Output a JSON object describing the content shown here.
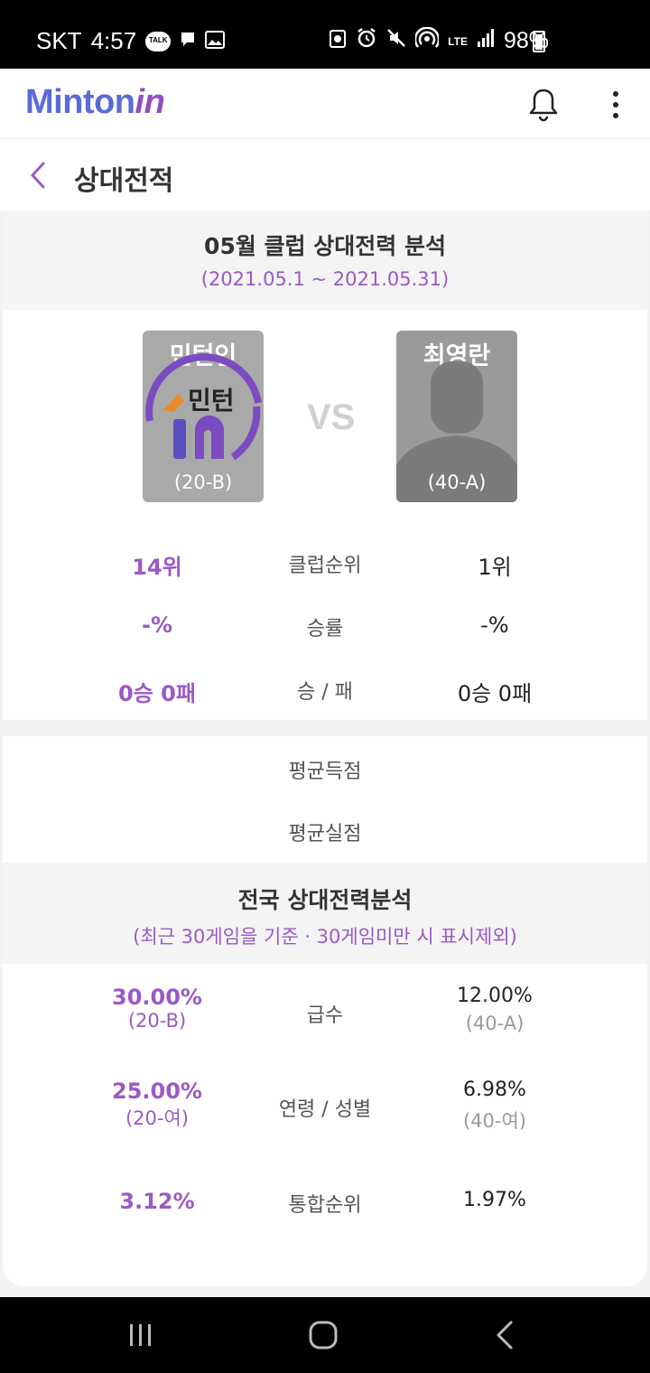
{
  "status": {
    "carrier": "SKT",
    "time": "4:57",
    "talk_badge": "TALK",
    "network": "LTE",
    "battery": "98%"
  },
  "appbar": {
    "logo_main": "Minton",
    "logo_accent": "in"
  },
  "subbar": {
    "title": "상대전적"
  },
  "monthly": {
    "title": "05월 클럽 상대전력 분석",
    "range": "(2021.05.1 ~ 2021.05.31)"
  },
  "players": {
    "left": {
      "name": "민턴인",
      "grade": "(20-B)",
      "logo_text": "민턴"
    },
    "right": {
      "name": "최영란",
      "grade": "(40-A)"
    },
    "vs": "VS"
  },
  "club_stats": [
    {
      "left": "14위",
      "label": "클럽순위",
      "right": "1위"
    },
    {
      "left": "-%",
      "label": "승률",
      "right": "-%"
    },
    {
      "left": "0승 0패",
      "label": "승 / 패",
      "right": "0승 0패"
    }
  ],
  "scores": [
    {
      "label": "평균득점"
    },
    {
      "label": "평균실점"
    }
  ],
  "national": {
    "title": "전국 상대전력분석",
    "note": "(최근 30게임을 기준 · 30게임미만 시 표시제외)",
    "rows": [
      {
        "left": "30.00%",
        "left_sub": "(20-B)",
        "label": "급수",
        "right": "12.00%",
        "right_sub": "(40-A)"
      },
      {
        "left": "25.00%",
        "left_sub": "(20-여)",
        "label": "연령 / 성별",
        "right": "6.98%",
        "right_sub": "(40-여)"
      },
      {
        "left": "3.12%",
        "left_sub": "",
        "label": "통합순위",
        "right": "1.97%",
        "right_sub": ""
      }
    ]
  },
  "colors": {
    "accent": "#9b59c6",
    "logo_blue": "#5b6bd6",
    "section_bg": "#f4f4f4"
  }
}
